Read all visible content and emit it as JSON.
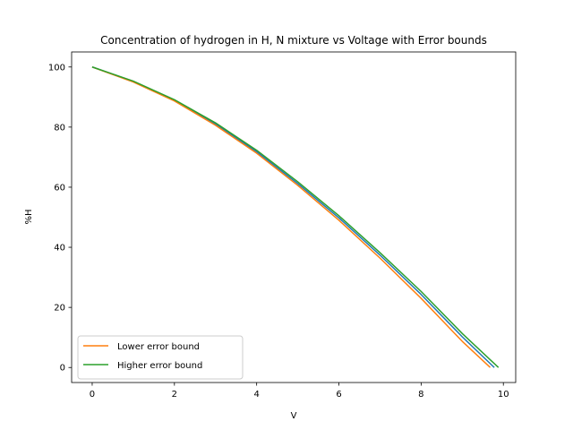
{
  "chart_data": {
    "type": "line",
    "title": "Concentration of hydrogen in H, N mixture vs Voltage with Error bounds",
    "xlabel": "V",
    "ylabel": "%H",
    "xlim": [
      -0.5,
      10.3
    ],
    "ylim": [
      -5,
      105
    ],
    "xticks": [
      0,
      2,
      4,
      6,
      8,
      10
    ],
    "yticks": [
      0,
      20,
      40,
      60,
      80,
      100
    ],
    "grid": false,
    "legend_position": "lower-left",
    "series": [
      {
        "name": "",
        "color": "#1f77b4",
        "in_legend": false,
        "x": [
          0,
          1,
          2,
          3,
          4,
          5,
          6,
          7,
          8,
          9,
          9.78
        ],
        "y": [
          100,
          95.2,
          88.9,
          81.0,
          71.8,
          61.2,
          49.8,
          37.4,
          24.3,
          10.2,
          0
        ]
      },
      {
        "name": "Lower error bound",
        "color": "#ff7f0e",
        "in_legend": true,
        "x": [
          0,
          1,
          2,
          3,
          4,
          5,
          6,
          7,
          8,
          9,
          9.68
        ],
        "y": [
          100,
          95.0,
          88.7,
          80.6,
          71.3,
          60.6,
          49.0,
          36.4,
          23.0,
          8.7,
          0
        ]
      },
      {
        "name": "Higher error bound",
        "color": "#2ca02c",
        "in_legend": true,
        "x": [
          0,
          1,
          2,
          3,
          4,
          5,
          6,
          7,
          8,
          9,
          9.88
        ],
        "y": [
          100,
          95.3,
          89.1,
          81.4,
          72.3,
          61.8,
          50.5,
          38.2,
          25.3,
          11.3,
          0
        ]
      }
    ]
  }
}
